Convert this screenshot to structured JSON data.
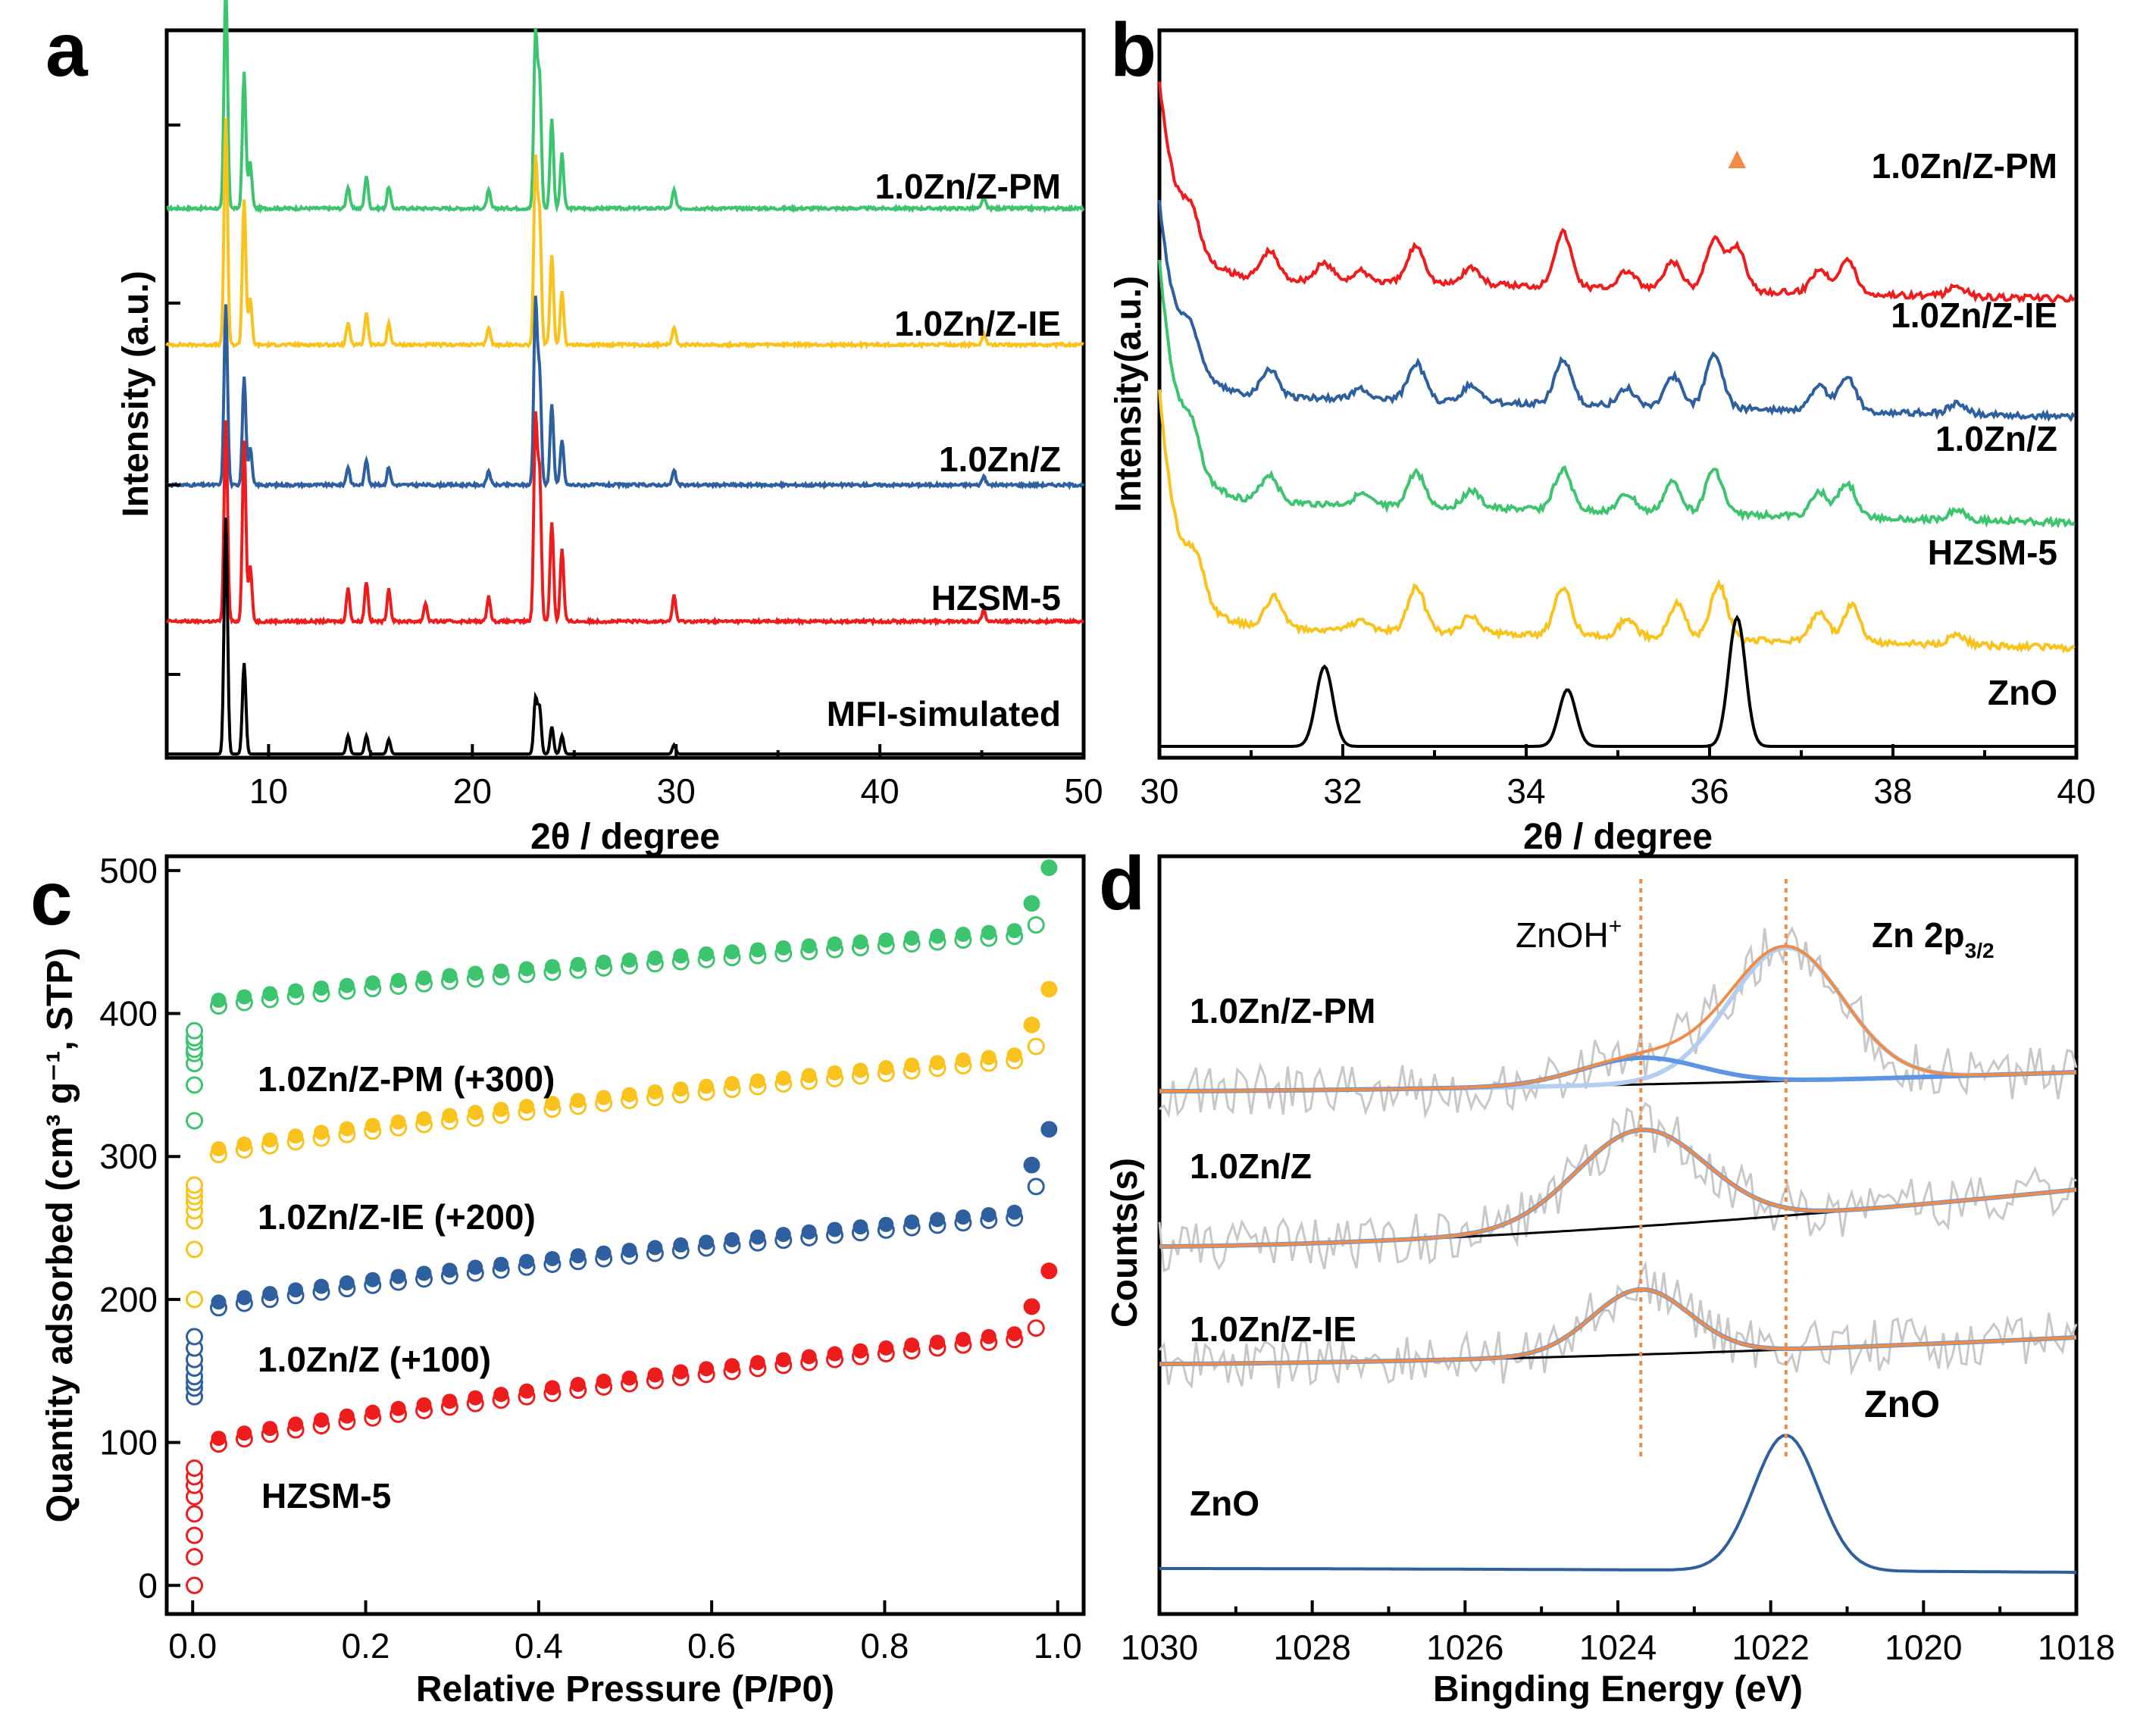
{
  "colors": {
    "green": "#3cc46f",
    "gold": "#f9c21c",
    "blue": "#2e5f9e",
    "red": "#ee1c1c",
    "black": "#000000",
    "orange": "#f08c46",
    "lightblue": "#b4cef2",
    "midblue": "#5d95e2",
    "gray": "#c8c8c8"
  },
  "chart_data": [
    {
      "panel": "a",
      "type": "line",
      "title": "",
      "xlabel": "2θ / degree",
      "ylabel": "Intensity (a.u.)",
      "xlim": [
        5,
        50
      ],
      "xticks": [
        10,
        20,
        30,
        40,
        50
      ],
      "series": [
        {
          "name": "1.0Zn/Z-PM",
          "color": "green",
          "offset": 4,
          "peaks": [
            [
              7.9,
              1.25
            ],
            [
              8.8,
              0.75
            ],
            [
              9.1,
              0.25
            ],
            [
              13.9,
              0.12
            ],
            [
              14.8,
              0.18
            ],
            [
              15.9,
              0.12
            ],
            [
              20.8,
              0.1
            ],
            [
              23.1,
              0.95
            ],
            [
              23.3,
              0.7
            ],
            [
              23.9,
              0.5
            ],
            [
              24.4,
              0.3
            ],
            [
              29.9,
              0.1
            ],
            [
              45.1,
              0.06
            ]
          ]
        },
        {
          "name": "1.0Zn/Z-IE",
          "color": "gold",
          "offset": 3,
          "peaks": [
            [
              7.9,
              1.25
            ],
            [
              8.8,
              0.8
            ],
            [
              9.1,
              0.25
            ],
            [
              13.9,
              0.12
            ],
            [
              14.8,
              0.18
            ],
            [
              15.9,
              0.12
            ],
            [
              20.8,
              0.1
            ],
            [
              23.1,
              1.0
            ],
            [
              23.3,
              0.7
            ],
            [
              23.9,
              0.5
            ],
            [
              24.4,
              0.3
            ],
            [
              29.9,
              0.1
            ],
            [
              45.1,
              0.06
            ]
          ]
        },
        {
          "name": "1.0Zn/Z",
          "color": "blue",
          "offset": 2,
          "peaks": [
            [
              7.9,
              1.0
            ],
            [
              8.8,
              0.6
            ],
            [
              9.1,
              0.2
            ],
            [
              13.9,
              0.1
            ],
            [
              14.8,
              0.14
            ],
            [
              15.9,
              0.1
            ],
            [
              20.8,
              0.08
            ],
            [
              23.1,
              1.0
            ],
            [
              23.3,
              0.6
            ],
            [
              23.9,
              0.45
            ],
            [
              24.4,
              0.25
            ],
            [
              29.9,
              0.08
            ],
            [
              45.1,
              0.05
            ]
          ]
        },
        {
          "name": "HZSM-5",
          "color": "red",
          "offset": 1,
          "peaks": [
            [
              7.9,
              1.1
            ],
            [
              8.8,
              1.0
            ],
            [
              9.1,
              0.3
            ],
            [
              13.9,
              0.18
            ],
            [
              14.8,
              0.22
            ],
            [
              15.9,
              0.18
            ],
            [
              17.7,
              0.1
            ],
            [
              20.8,
              0.14
            ],
            [
              23.1,
              1.1
            ],
            [
              23.3,
              0.8
            ],
            [
              23.9,
              0.55
            ],
            [
              24.4,
              0.4
            ],
            [
              29.9,
              0.14
            ],
            [
              45.1,
              0.07
            ]
          ]
        },
        {
          "name": "MFI-simulated",
          "color": "black",
          "offset": 0,
          "peaks": [
            [
              7.9,
              1.3
            ],
            [
              8.8,
              0.5
            ],
            [
              13.9,
              0.1
            ],
            [
              14.8,
              0.1
            ],
            [
              15.9,
              0.08
            ],
            [
              23.1,
              0.3
            ],
            [
              23.3,
              0.25
            ],
            [
              23.9,
              0.15
            ],
            [
              24.4,
              0.1
            ],
            [
              29.9,
              0.05
            ]
          ]
        }
      ]
    },
    {
      "panel": "b",
      "type": "line",
      "title": "",
      "xlabel": "2θ / degree",
      "ylabel": "Intensity(a.u.)",
      "xlim": [
        30,
        40
      ],
      "xticks": [
        30,
        32,
        34,
        36,
        38,
        40
      ],
      "annotation": "▲",
      "annotation_x": 36.3,
      "series": [
        {
          "name": "1.0Zn/Z-PM",
          "color": "red",
          "offset": 4,
          "peaks": [
            [
              30.35,
              0.5
            ],
            [
              31.2,
              0.4
            ],
            [
              31.8,
              0.25
            ],
            [
              32.2,
              0.15
            ],
            [
              32.8,
              0.55
            ],
            [
              33.4,
              0.25
            ],
            [
              34.4,
              0.8
            ],
            [
              35.1,
              0.25
            ],
            [
              35.6,
              0.4
            ],
            [
              36.05,
              0.75
            ],
            [
              36.3,
              0.65
            ],
            [
              37.2,
              0.35
            ],
            [
              37.5,
              0.5
            ],
            [
              38.7,
              0.15
            ]
          ]
        },
        {
          "name": "1.0Zn/Z-IE",
          "color": "blue",
          "offset": 3,
          "peaks": [
            [
              30.35,
              0.5
            ],
            [
              31.2,
              0.4
            ],
            [
              32.2,
              0.15
            ],
            [
              32.8,
              0.55
            ],
            [
              33.4,
              0.25
            ],
            [
              34.4,
              0.65
            ],
            [
              35.1,
              0.25
            ],
            [
              35.6,
              0.45
            ],
            [
              36.05,
              0.8
            ],
            [
              37.2,
              0.35
            ],
            [
              37.5,
              0.5
            ],
            [
              38.7,
              0.15
            ]
          ]
        },
        {
          "name": "1.0Zn/Z",
          "color": "green",
          "offset": 2,
          "peaks": [
            [
              30.35,
              0.5
            ],
            [
              31.2,
              0.4
            ],
            [
              32.2,
              0.15
            ],
            [
              32.8,
              0.5
            ],
            [
              33.4,
              0.25
            ],
            [
              34.4,
              0.6
            ],
            [
              35.1,
              0.25
            ],
            [
              35.6,
              0.45
            ],
            [
              36.05,
              0.65
            ],
            [
              37.2,
              0.35
            ],
            [
              37.5,
              0.5
            ],
            [
              38.7,
              0.15
            ]
          ]
        },
        {
          "name": "HZSM-5",
          "color": "gold",
          "offset": 1,
          "peaks": [
            [
              30.4,
              0.55
            ],
            [
              31.25,
              0.45
            ],
            [
              32.2,
              0.15
            ],
            [
              32.8,
              0.65
            ],
            [
              33.4,
              0.25
            ],
            [
              34.4,
              0.7
            ],
            [
              35.1,
              0.25
            ],
            [
              35.65,
              0.5
            ],
            [
              36.1,
              0.8
            ],
            [
              37.2,
              0.45
            ],
            [
              37.55,
              0.55
            ],
            [
              38.7,
              0.15
            ]
          ]
        },
        {
          "name": "ZnO",
          "color": "black",
          "offset": 0,
          "peaks": [
            [
              31.8,
              0.62
            ],
            [
              34.45,
              0.44
            ],
            [
              36.3,
              1.0
            ]
          ]
        }
      ]
    },
    {
      "panel": "c",
      "type": "scatter",
      "title": "",
      "xlabel": "Relative Pressure (P/P0)",
      "ylabel": "Quantity adsorbed (cm³ g⁻¹, STP)",
      "xlim": [
        -0.03,
        1.03
      ],
      "ylim": [
        -20,
        510
      ],
      "xticks": [
        0.0,
        0.2,
        0.4,
        0.6,
        0.8,
        1.0
      ],
      "yticks": [
        0,
        100,
        200,
        300,
        400,
        500
      ],
      "series": [
        {
          "name": "1.0Zn/Z-PM (+300)",
          "color": "green",
          "offset": 300,
          "low_pressure": [
            25,
            50,
            65,
            72,
            75,
            80,
            83,
            88
          ],
          "plateau_start": 100,
          "plateau_end": 152,
          "top": 202
        },
        {
          "name": "1.0Zn/Z-IE (+200)",
          "color": "gold",
          "offset": 200,
          "low_pressure": [
            0,
            35,
            55,
            62,
            68,
            72,
            76,
            80
          ],
          "plateau_start": 95,
          "plateau_end": 165,
          "top": 217
        },
        {
          "name": "1.0Zn/Z (+100)",
          "color": "blue",
          "offset": 100,
          "low_pressure": [
            32,
            38,
            42,
            46,
            52,
            58,
            66,
            74
          ],
          "plateau_start": 88,
          "plateau_end": 155,
          "top": 219
        },
        {
          "name": "HZSM-5",
          "color": "red",
          "offset": 0,
          "low_pressure": [
            0,
            20,
            35,
            50,
            62,
            70,
            76,
            82
          ],
          "plateau_start": 92,
          "plateau_end": 170,
          "top": 220
        }
      ]
    },
    {
      "panel": "d",
      "type": "line",
      "title": "",
      "xlabel": "Bingding Energy (eV)",
      "ylabel": "Counts(s)",
      "xlim": [
        1030,
        1018
      ],
      "xticks": [
        1030,
        1028,
        1026,
        1024,
        1022,
        1020,
        1018
      ],
      "reference_lines": [
        1023.7,
        1021.8
      ],
      "labels": {
        "zn2p": "Zn 2p",
        "zn2p_sub": "3/2",
        "znoh": "ZnOH",
        "znoh_sup": "+",
        "zno_peak": "ZnO"
      },
      "series": [
        {
          "name": "1.0Zn/Z-PM",
          "offset": 3,
          "components": [
            {
              "center": 1021.8,
              "height": 1.6,
              "width": 1.05
            },
            {
              "center": 1023.7,
              "height": 0.32,
              "width": 1.1
            }
          ]
        },
        {
          "name": "1.0Zn/Z",
          "offset": 2,
          "components": [
            {
              "center": 1023.7,
              "height": 1.1,
              "width": 1.2
            }
          ]
        },
        {
          "name": "1.0Zn/Z-IE",
          "offset": 1,
          "components": [
            {
              "center": 1023.7,
              "height": 0.65,
              "width": 0.9
            }
          ]
        },
        {
          "name": "ZnO",
          "offset": 0,
          "components": [
            {
              "center": 1021.8,
              "height": 1.25,
              "width": 0.6
            }
          ]
        }
      ]
    }
  ]
}
